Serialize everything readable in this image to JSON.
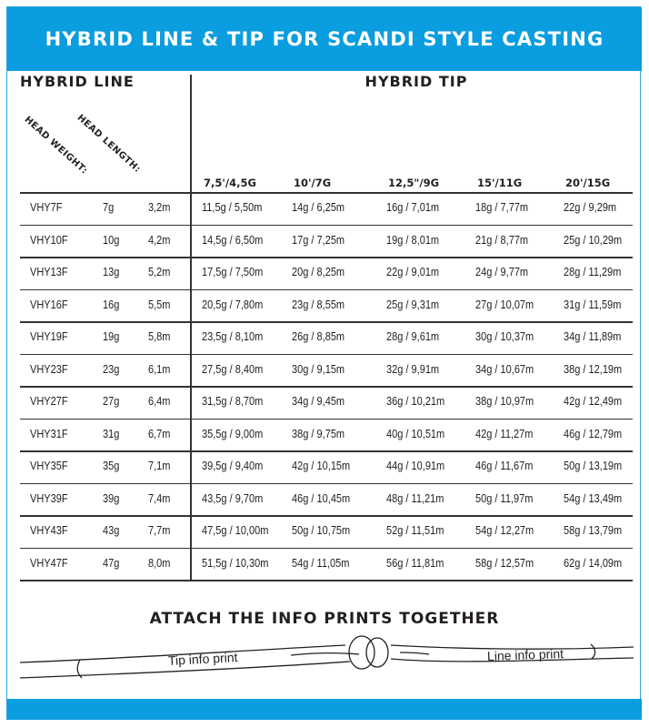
{
  "title": "HYBRID LINE & TIP FOR SCANDI STYLE CASTING",
  "hybrid_line_heading": "HYBRID LINE",
  "hybrid_tip_heading": "HYBRID TIP",
  "head_weight_label": "HEAD WEIGHT:",
  "head_length_label": "HEAD LENGTH:",
  "tip_columns": [
    "7,5'/4,5G",
    "10'/7G",
    "12,5\"/9G",
    "15'/11G",
    "20'/15G"
  ],
  "rows": [
    {
      "name": "VHY7F",
      "weight": "7g",
      "length": "3,2m",
      "tips": [
        "11,5g / 5,50m",
        "14g / 6,25m",
        "16g / 7,01m",
        "18g / 7,77m",
        "22g / 9,29m"
      ]
    },
    {
      "name": "VHY10F",
      "weight": "10g",
      "length": "4,2m",
      "tips": [
        "14,5g / 6,50m",
        "17g / 7,25m",
        "19g / 8,01m",
        "21g / 8,77m",
        "25g / 10,29m"
      ]
    },
    {
      "name": "VHY13F",
      "weight": "13g",
      "length": "5,2m",
      "tips": [
        "17,5g / 7,50m",
        "20g / 8,25m",
        "22g / 9,01m",
        "24g / 9,77m",
        "28g / 11,29m"
      ]
    },
    {
      "name": "VHY16F",
      "weight": "16g",
      "length": "5,5m",
      "tips": [
        "20,5g / 7,80m",
        "23g / 8,55m",
        "25g / 9,31m",
        "27g / 10,07m",
        "31g / 11,59m"
      ]
    },
    {
      "name": "VHY19F",
      "weight": "19g",
      "length": "5,8m",
      "tips": [
        "23,5g / 8,10m",
        "26g / 8,85m",
        "28g / 9,61m",
        "30g / 10,37m",
        "34g / 11,89m"
      ]
    },
    {
      "name": "VHY23F",
      "weight": "23g",
      "length": "6,1m",
      "tips": [
        "27,5g / 8,40m",
        "30g / 9,15m",
        "32g / 9,91m",
        "34g / 10,67m",
        "38g / 12,19m"
      ]
    },
    {
      "name": "VHY27F",
      "weight": "27g",
      "length": "6,4m",
      "tips": [
        "31,5g / 8,70m",
        "34g / 9,45m",
        "36g / 10,21m",
        "38g / 10,97m",
        "42g / 12,49m"
      ]
    },
    {
      "name": "VHY31F",
      "weight": "31g",
      "length": "6,7m",
      "tips": [
        "35,5g / 9,00m",
        "38g / 9,75m",
        "40g / 10,51m",
        "42g / 11,27m",
        "46g / 12,79m"
      ]
    },
    {
      "name": "VHY35F",
      "weight": "35g",
      "length": "7,1m",
      "tips": [
        "39,5g / 9,40m",
        "42g / 10,15m",
        "44g / 10,91m",
        "46g / 11,67m",
        "50g / 13,19m"
      ]
    },
    {
      "name": "VHY39F",
      "weight": "39g",
      "length": "7,4m",
      "tips": [
        "43,5g / 9,70m",
        "46g / 10,45m",
        "48g / 11,21m",
        "50g / 11,97m",
        "54g / 13,49m"
      ]
    },
    {
      "name": "VHY43F",
      "weight": "43g",
      "length": "7,7m",
      "tips": [
        "47,5g / 10,00m",
        "50g / 10,75m",
        "52g / 11,51m",
        "54g / 12,27m",
        "58g / 13,79m"
      ]
    },
    {
      "name": "VHY47F",
      "weight": "47g",
      "length": "8,0m",
      "tips": [
        "51,5g / 10,30m",
        "54g / 11,05m",
        "56g / 11,81m",
        "58g / 12,57m",
        "62g / 14,09m"
      ]
    }
  ],
  "diagram": {
    "title": "ATTACH THE INFO PRINTS TOGETHER",
    "tip_label": "Tip info print",
    "line_label": "Line info print"
  },
  "colors": {
    "brand_blue": "#0a9ddf"
  }
}
